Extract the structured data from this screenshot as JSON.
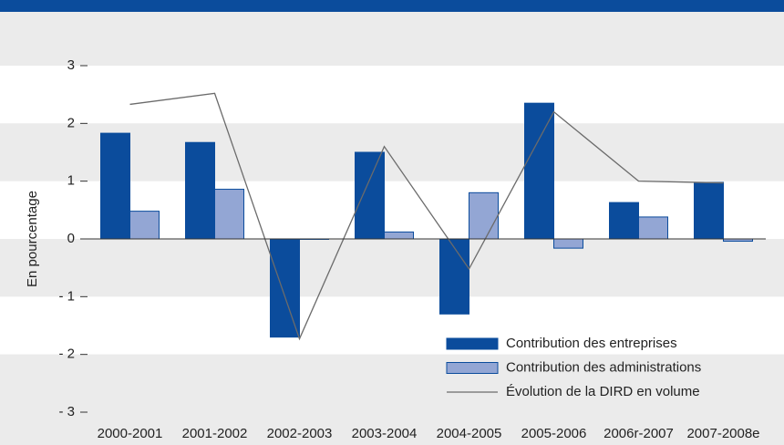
{
  "chart_data": {
    "type": "bar",
    "y_axis_label": "En pourcentage",
    "categories": [
      "2000-2001",
      "2001-2002",
      "2002-2003",
      "2003-2004",
      "2004-2005",
      "2005-2006",
      "2006r-2007",
      "2007-2008e"
    ],
    "series": [
      {
        "name": "Contribution des entreprises",
        "type": "bar",
        "color": "#0b4c9c",
        "values": [
          1.83,
          1.67,
          -1.7,
          1.5,
          -1.3,
          2.35,
          0.63,
          0.98
        ]
      },
      {
        "name": "Contribution des administrations",
        "type": "bar",
        "color": "#93a6d4",
        "values": [
          0.48,
          0.86,
          0,
          0.12,
          0.8,
          -0.16,
          0.38,
          -0.04
        ]
      },
      {
        "name": "Évolution de la DIRD en volume",
        "type": "line",
        "color": "#6b6b6b",
        "values": [
          2.33,
          2.52,
          -1.73,
          1.6,
          -0.52,
          2.2,
          1.0,
          0.97
        ]
      }
    ],
    "ylim": [
      -3,
      3
    ],
    "yticks": [
      {
        "value": -3,
        "label": "- 3"
      },
      {
        "value": -2,
        "label": "- 2"
      },
      {
        "value": -1,
        "label": "- 1"
      },
      0,
      1,
      2,
      3
    ],
    "grid": "bands"
  }
}
